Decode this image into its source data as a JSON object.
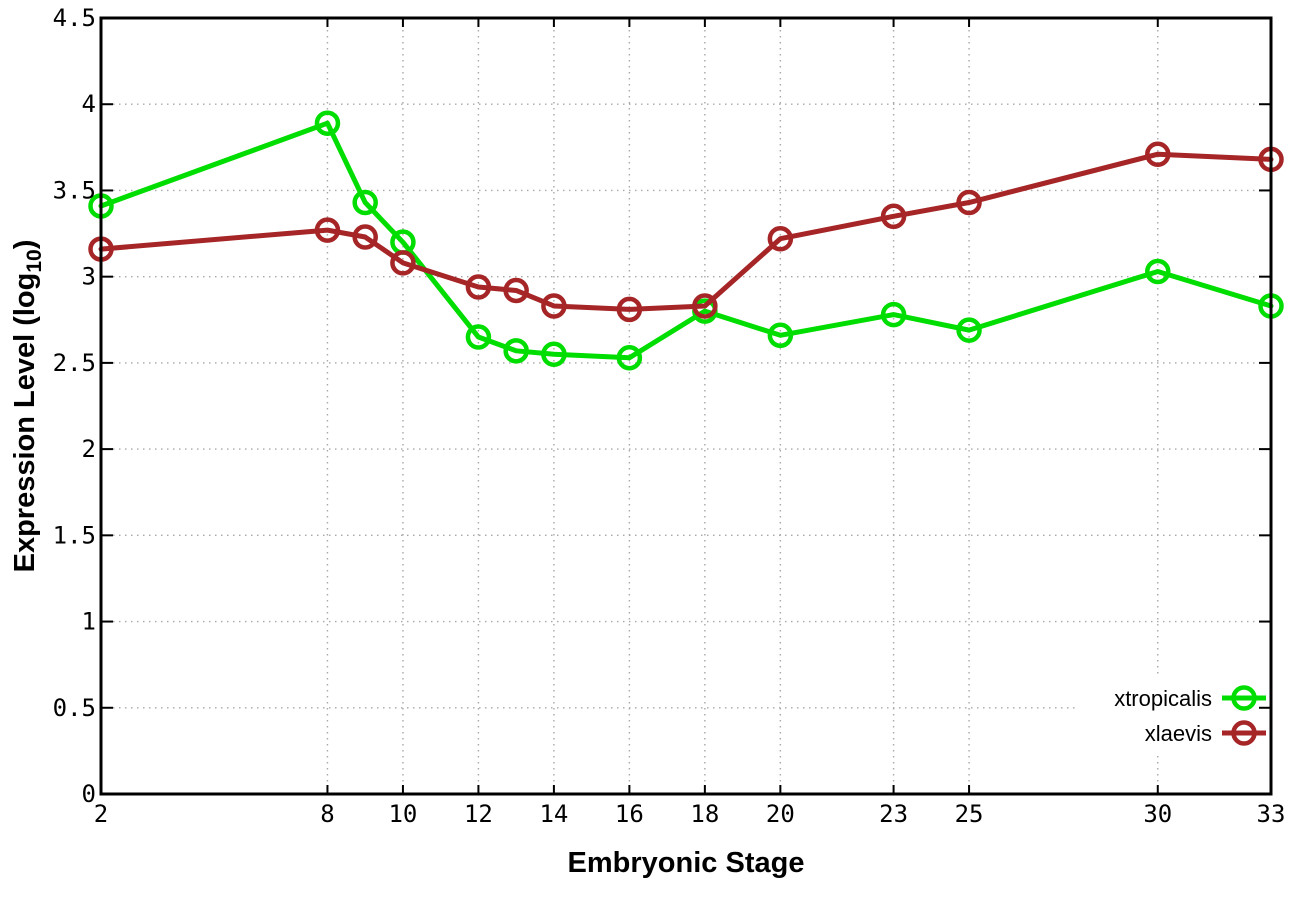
{
  "figure": {
    "background": "#ffffff",
    "border_color": "#000000",
    "grid_color": "#a8a8a8"
  },
  "chart_data": {
    "type": "line",
    "title": "",
    "xlabel": "Embryonic Stage",
    "ylabel": "Expression Level (log10)",
    "ylabel_main": "Expression Level (log",
    "ylabel_sub": "10",
    "ylabel_end": ")",
    "xlim": [
      2,
      33
    ],
    "ylim": [
      0,
      4.5
    ],
    "grid": true,
    "legend_position": "bottom-right-inside",
    "x": [
      2,
      8,
      9,
      10,
      12,
      13,
      14,
      16,
      18,
      20,
      23,
      25,
      30,
      33
    ],
    "xticks": {
      "values": [
        2,
        8,
        10,
        12,
        14,
        16,
        18,
        20,
        23,
        25,
        30,
        33
      ],
      "labels": [
        "2",
        "8",
        "10",
        "12",
        "14",
        "16",
        "18",
        "20",
        "23",
        "25",
        "30",
        "33"
      ]
    },
    "yticks": {
      "values": [
        0,
        0.5,
        1,
        1.5,
        2,
        2.5,
        3,
        3.5,
        4,
        4.5
      ],
      "labels": [
        "0",
        "0.5",
        "1",
        "1.5",
        "2",
        "2.5",
        "3",
        "3.5",
        "4",
        "4.5"
      ]
    },
    "series": [
      {
        "name": "xtropicalis",
        "color": "#00dd00",
        "marker": "open-circle",
        "values": [
          3.41,
          3.89,
          3.43,
          3.2,
          2.65,
          2.57,
          2.55,
          2.53,
          2.8,
          2.66,
          2.78,
          2.69,
          3.03,
          2.83
        ]
      },
      {
        "name": "xlaevis",
        "color": "#a62526",
        "marker": "open-circle",
        "values": [
          3.16,
          3.27,
          3.23,
          3.08,
          2.94,
          2.92,
          2.83,
          2.81,
          2.83,
          3.22,
          3.35,
          3.43,
          3.71,
          3.68
        ]
      }
    ]
  }
}
